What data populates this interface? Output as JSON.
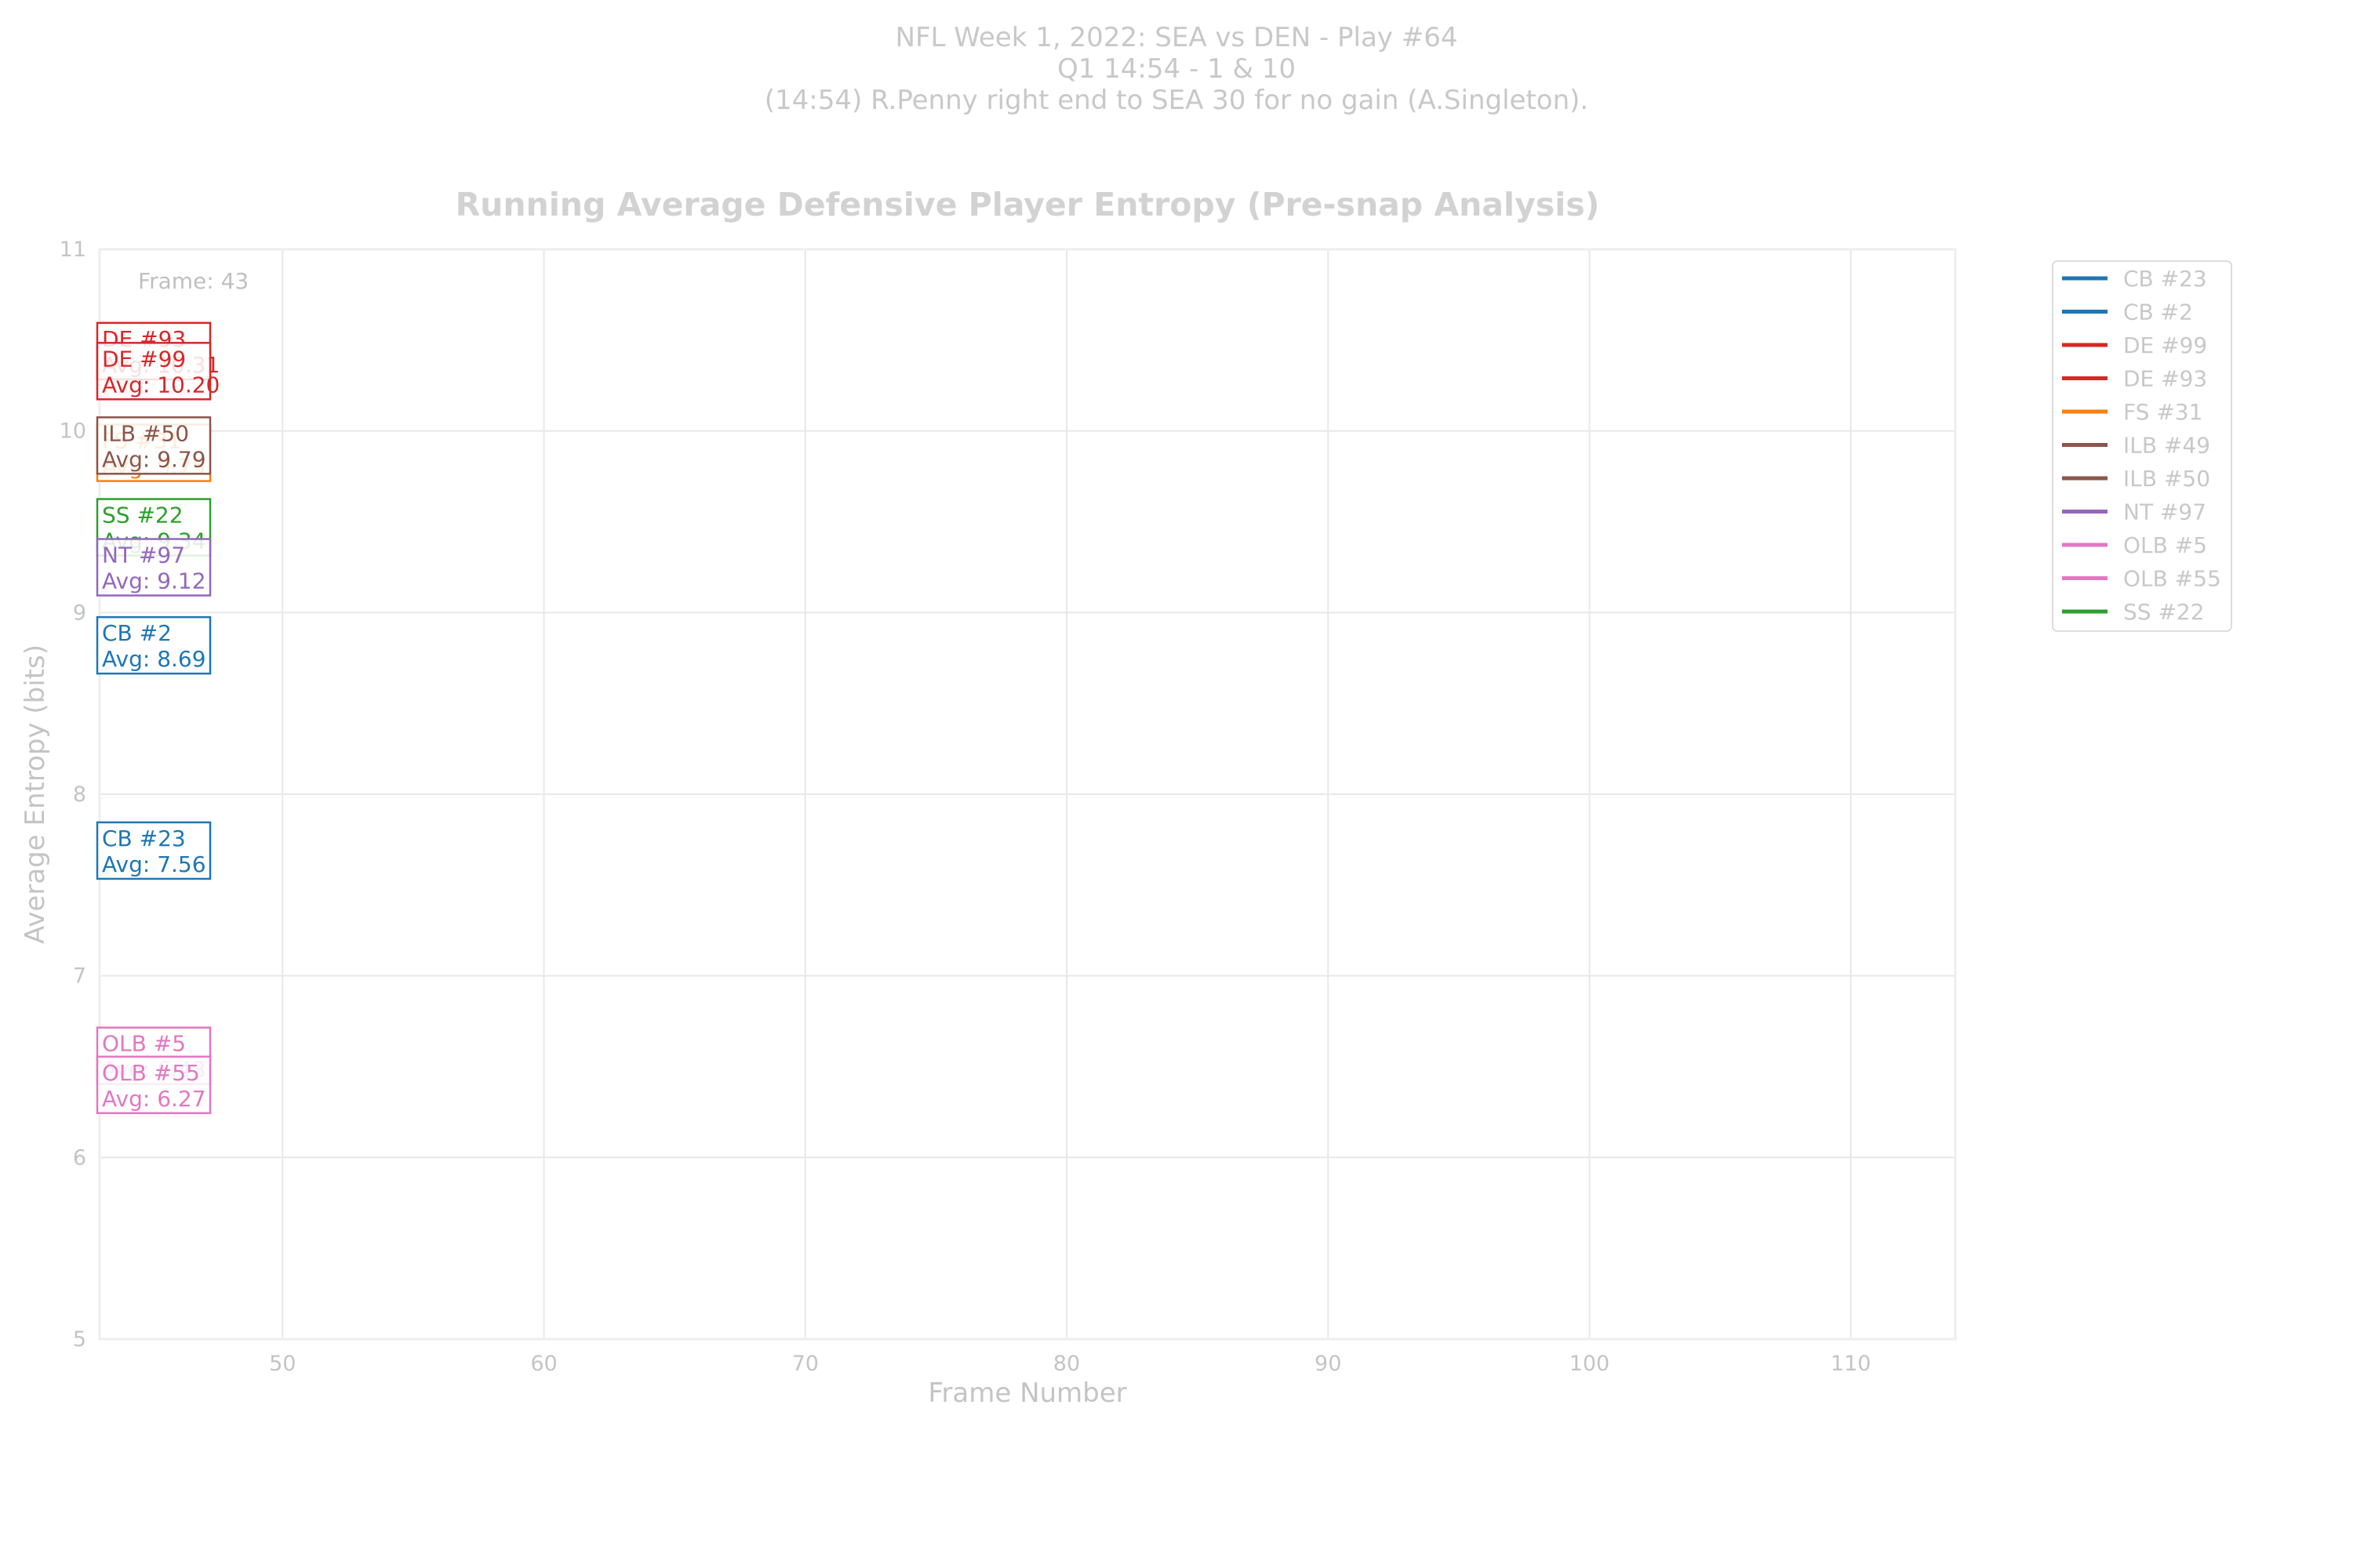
{
  "header": {
    "line1": "NFL Week 1, 2022: SEA vs DEN - Play #64",
    "line2": "Q1 14:54 - 1 & 10",
    "line3": "(14:54) R.Penny right end to SEA 30 for no gain (A.Singleton)."
  },
  "chart_data": {
    "type": "line",
    "title": "Running Average Defensive Player Entropy (Pre-snap Analysis)",
    "xlabel": "Frame Number",
    "ylabel": "Average Entropy (bits)",
    "xlim": [
      43,
      114
    ],
    "ylim": [
      5,
      11
    ],
    "xticks": [
      50,
      60,
      70,
      80,
      90,
      100,
      110
    ],
    "yticks": [
      5,
      6,
      7,
      8,
      9,
      10,
      11
    ],
    "grid": true,
    "legend_position": "outside-right",
    "frame_label": "Frame: 43",
    "current_frame": 43,
    "series": [
      {
        "name": "CB #23",
        "color": "#1f77b4",
        "x": [
          43
        ],
        "y": [
          7.56
        ]
      },
      {
        "name": "CB #2",
        "color": "#1f77b4",
        "x": [
          43
        ],
        "y": [
          8.69
        ]
      },
      {
        "name": "DE #99",
        "color": "#d62728",
        "x": [
          43
        ],
        "y": [
          10.2
        ]
      },
      {
        "name": "DE #93",
        "color": "#d62728",
        "x": [
          43
        ],
        "y": [
          10.31
        ]
      },
      {
        "name": "FS #31",
        "color": "#ff7f0e",
        "x": [
          43
        ],
        "y": [
          9.75
        ]
      },
      {
        "name": "ILB #49",
        "color": "#8c564b",
        "x": [
          43
        ],
        "y": [
          9.8
        ]
      },
      {
        "name": "ILB #50",
        "color": "#8c564b",
        "x": [
          43
        ],
        "y": [
          9.79
        ]
      },
      {
        "name": "NT #97",
        "color": "#9467bd",
        "x": [
          43
        ],
        "y": [
          9.12
        ]
      },
      {
        "name": "OLB #5",
        "color": "#e377c2",
        "x": [
          43
        ],
        "y": [
          6.43
        ]
      },
      {
        "name": "OLB #55",
        "color": "#e377c2",
        "x": [
          43
        ],
        "y": [
          6.27
        ]
      },
      {
        "name": "SS #22",
        "color": "#2ca02c",
        "x": [
          43
        ],
        "y": [
          9.34
        ]
      }
    ],
    "annotations": [
      {
        "name": "DE #93",
        "text": "DE #93",
        "avg": "Avg: 10.31",
        "color": "#d62728",
        "y": 10.31
      },
      {
        "name": "DE #99",
        "text": "DE #99",
        "avg": "Avg: 10.20",
        "color": "#d62728",
        "y": 10.2
      },
      {
        "name": "FS #31",
        "text": "FS #31",
        "avg": "Avg: 9.75",
        "color": "#ff7f0e",
        "y": 9.75
      },
      {
        "name": "ILB #50",
        "text": "ILB #50",
        "avg": "Avg: 9.79",
        "color": "#8c564b",
        "y": 9.79
      },
      {
        "name": "SS #22",
        "text": "SS #22",
        "avg": "Avg: 9.34",
        "color": "#2ca02c",
        "y": 9.34
      },
      {
        "name": "NT #97",
        "text": "NT #97",
        "avg": "Avg: 9.12",
        "color": "#9467bd",
        "y": 9.12
      },
      {
        "name": "CB #2",
        "text": "CB #2",
        "avg": "Avg: 8.69",
        "color": "#1f77b4",
        "y": 8.69
      },
      {
        "name": "CB #23",
        "text": "CB #23",
        "avg": "Avg: 7.56",
        "color": "#1f77b4",
        "y": 7.56
      },
      {
        "name": "OLB #5",
        "text": "OLB #5",
        "avg": "Avg: 6.43",
        "color": "#e377c2",
        "y": 6.43
      },
      {
        "name": "OLB #55",
        "text": "OLB #55",
        "avg": "Avg: 6.27",
        "color": "#e377c2",
        "y": 6.27
      }
    ]
  }
}
